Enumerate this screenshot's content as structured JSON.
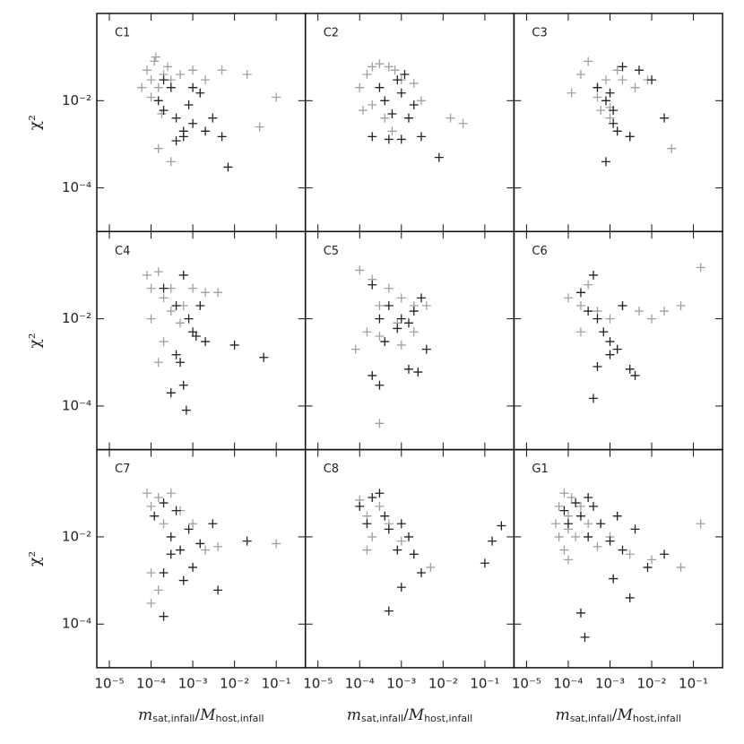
{
  "chart_data": [
    {
      "type": "scatter",
      "title": "C1",
      "ylabel": "χ²",
      "xlim": [
        5e-06,
        0.5
      ],
      "ylim": [
        1e-05,
        1
      ],
      "log_x": true,
      "log_y": true,
      "xticks": [
        1e-05,
        0.0001,
        0.001,
        0.01,
        0.1
      ],
      "yticks": [
        {
          "value": 0.0001,
          "label": "10⁻⁴"
        },
        {
          "value": 0.01,
          "label": "10⁻²"
        }
      ],
      "series": [
        {
          "color": "#a0a0a0",
          "x": [
            8e-05,
            0.0001,
            0.00012,
            0.00015,
            0.0002,
            0.0001,
            0.00013,
            0.00025,
            6e-05,
            0.00018,
            0.0003,
            0.0005,
            0.001,
            0.002,
            0.005,
            0.02,
            0.1,
            0.04,
            0.00015,
            0.0003
          ],
          "values": [
            0.05,
            0.03,
            0.08,
            0.02,
            0.04,
            0.012,
            0.1,
            0.06,
            0.02,
            0.005,
            0.03,
            0.04,
            0.05,
            0.03,
            0.05,
            0.04,
            0.012,
            0.0025,
            0.0008,
            0.0004
          ]
        },
        {
          "color": "#222222",
          "x": [
            0.00015,
            0.0002,
            0.0003,
            0.0004,
            0.0006,
            0.0008,
            0.001,
            0.0015,
            0.002,
            0.003,
            0.005,
            0.0004,
            0.001,
            0.007,
            0.0002,
            0.0006
          ],
          "values": [
            0.01,
            0.006,
            0.02,
            0.004,
            0.002,
            0.008,
            0.003,
            0.015,
            0.002,
            0.004,
            0.0015,
            0.0012,
            0.02,
            0.0003,
            0.03,
            0.0015
          ]
        }
      ]
    },
    {
      "type": "scatter",
      "title": "C2",
      "xlim": [
        5e-06,
        0.5
      ],
      "ylim": [
        1e-05,
        1
      ],
      "log_x": true,
      "log_y": true,
      "xticks": [
        1e-05,
        0.0001,
        0.001,
        0.01,
        0.1
      ],
      "yticks": [
        0.0001,
        0.01
      ],
      "series": [
        {
          "color": "#a0a0a0",
          "x": [
            0.0001,
            0.00015,
            0.0002,
            0.0003,
            0.0005,
            0.0007,
            0.0002,
            0.0004,
            0.001,
            0.002,
            0.003,
            0.00012,
            0.0006,
            0.03,
            0.015
          ],
          "values": [
            0.02,
            0.04,
            0.06,
            0.07,
            0.06,
            0.05,
            0.008,
            0.004,
            0.03,
            0.025,
            0.01,
            0.006,
            0.002,
            0.003,
            0.004
          ]
        },
        {
          "color": "#222222",
          "x": [
            0.0003,
            0.0004,
            0.0006,
            0.0008,
            0.001,
            0.0015,
            0.002,
            0.003,
            0.0005,
            0.001,
            0.0002,
            0.008,
            0.0012
          ],
          "values": [
            0.02,
            0.01,
            0.005,
            0.03,
            0.015,
            0.004,
            0.008,
            0.0015,
            0.0013,
            0.0013,
            0.0015,
            0.0005,
            0.04
          ]
        }
      ]
    },
    {
      "type": "scatter",
      "title": "C3",
      "xlim": [
        5e-06,
        0.5
      ],
      "ylim": [
        1e-05,
        1
      ],
      "log_x": true,
      "log_y": true,
      "xticks": [
        1e-05,
        0.0001,
        0.001,
        0.01,
        0.1
      ],
      "yticks": [
        0.0001,
        0.01
      ],
      "series": [
        {
          "color": "#a0a0a0",
          "x": [
            0.0002,
            0.0003,
            0.0005,
            0.0008,
            0.001,
            0.002,
            0.0005,
            0.001,
            0.0015,
            0.004,
            0.008,
            0.03,
            0.00012,
            0.0006
          ],
          "values": [
            0.04,
            0.08,
            0.02,
            0.03,
            0.007,
            0.03,
            0.012,
            0.004,
            0.05,
            0.02,
            0.03,
            0.0008,
            0.015,
            0.006
          ]
        },
        {
          "color": "#222222",
          "x": [
            0.0005,
            0.0008,
            0.001,
            0.0012,
            0.002,
            0.003,
            0.005,
            0.01,
            0.0015,
            0.0008,
            0.0012,
            0.02,
            0.003
          ],
          "values": [
            0.02,
            0.01,
            0.015,
            0.006,
            0.06,
            0.0015,
            0.05,
            0.03,
            0.002,
            0.0004,
            0.003,
            0.004,
            0.0015
          ]
        }
      ]
    },
    {
      "type": "scatter",
      "title": "C4",
      "ylabel": "χ²",
      "xlim": [
        5e-06,
        0.5
      ],
      "ylim": [
        1e-05,
        1
      ],
      "log_x": true,
      "log_y": true,
      "xticks": [
        1e-05,
        0.0001,
        0.001,
        0.01,
        0.1
      ],
      "yticks": [
        {
          "value": 0.0001,
          "label": "10⁻⁴"
        },
        {
          "value": 0.01,
          "label": "10⁻²"
        }
      ],
      "series": [
        {
          "color": "#a0a0a0",
          "x": [
            8e-05,
            0.0001,
            0.00015,
            0.0002,
            0.0003,
            0.0005,
            0.001,
            0.002,
            0.004,
            0.0001,
            0.0003,
            0.0006,
            0.0002,
            0.00015
          ],
          "values": [
            0.1,
            0.05,
            0.12,
            0.03,
            0.015,
            0.008,
            0.05,
            0.04,
            0.04,
            0.01,
            0.05,
            0.02,
            0.003,
            0.001
          ]
        },
        {
          "color": "#222222",
          "x": [
            0.0002,
            0.0004,
            0.0006,
            0.0008,
            0.001,
            0.0015,
            0.002,
            0.0012,
            0.0005,
            0.0006,
            0.0004,
            0.0003,
            0.01,
            0.05,
            0.0007
          ],
          "values": [
            0.05,
            0.02,
            0.1,
            0.01,
            0.005,
            0.02,
            0.003,
            0.004,
            0.001,
            0.0003,
            0.0015,
            0.0002,
            0.0025,
            0.0013,
            8e-05
          ]
        }
      ]
    },
    {
      "type": "scatter",
      "title": "C5",
      "xlim": [
        5e-06,
        0.5
      ],
      "ylim": [
        1e-05,
        1
      ],
      "log_x": true,
      "log_y": true,
      "xticks": [
        1e-05,
        0.0001,
        0.001,
        0.01,
        0.1
      ],
      "yticks": [
        0.0001,
        0.01
      ],
      "series": [
        {
          "color": "#a0a0a0",
          "x": [
            0.0001,
            0.0002,
            0.0003,
            0.0005,
            0.001,
            0.002,
            0.004,
            0.0008,
            0.00015,
            0.0003,
            0.001,
            0.002,
            8e-05,
            0.0003
          ],
          "values": [
            0.13,
            0.08,
            0.02,
            0.05,
            0.03,
            0.02,
            0.02,
            0.008,
            0.005,
            0.004,
            0.0025,
            0.005,
            0.002,
            4e-05
          ]
        },
        {
          "color": "#222222",
          "x": [
            0.0002,
            0.0003,
            0.0005,
            0.0008,
            0.001,
            0.0015,
            0.002,
            0.003,
            0.0004,
            0.0003,
            0.0015,
            0.0025,
            0.0002,
            0.004
          ],
          "values": [
            0.06,
            0.01,
            0.02,
            0.006,
            0.01,
            0.008,
            0.015,
            0.03,
            0.003,
            0.0003,
            0.0007,
            0.0006,
            0.0005,
            0.002
          ]
        }
      ]
    },
    {
      "type": "scatter",
      "title": "C6",
      "xlim": [
        5e-06,
        0.5
      ],
      "ylim": [
        1e-05,
        1
      ],
      "log_x": true,
      "log_y": true,
      "xticks": [
        1e-05,
        0.0001,
        0.001,
        0.01,
        0.1
      ],
      "yticks": [
        0.0001,
        0.01
      ],
      "series": [
        {
          "color": "#a0a0a0",
          "x": [
            0.0001,
            0.0002,
            0.0003,
            0.0005,
            0.001,
            0.002,
            0.005,
            0.02,
            0.05,
            0.15,
            0.01,
            0.0002
          ],
          "values": [
            0.03,
            0.02,
            0.06,
            0.015,
            0.01,
            0.02,
            0.015,
            0.015,
            0.02,
            0.15,
            0.01,
            0.005
          ]
        },
        {
          "color": "#222222",
          "x": [
            0.0002,
            0.0003,
            0.0004,
            0.0005,
            0.0007,
            0.001,
            0.0015,
            0.002,
            0.003,
            0.004,
            0.0005,
            0.001,
            0.0004
          ],
          "values": [
            0.04,
            0.015,
            0.1,
            0.01,
            0.005,
            0.003,
            0.002,
            0.02,
            0.0007,
            0.0005,
            0.0008,
            0.0015,
            0.00015
          ]
        }
      ]
    },
    {
      "type": "scatter",
      "title": "C7",
      "ylabel": "χ²",
      "xlabel": [
        "m",
        "sat,infall",
        "/",
        "M",
        "host,infall"
      ],
      "xlim": [
        5e-06,
        0.5
      ],
      "ylim": [
        1e-05,
        1
      ],
      "log_x": true,
      "log_y": true,
      "xticks": [
        {
          "value": 1e-05,
          "label": "10⁻⁵"
        },
        {
          "value": 0.0001,
          "label": "10⁻⁴"
        },
        {
          "value": 0.001,
          "label": "10⁻³"
        },
        {
          "value": 0.01,
          "label": "10⁻²"
        },
        {
          "value": 0.1,
          "label": "10⁻¹"
        }
      ],
      "yticks": [
        {
          "value": 0.0001,
          "label": "10⁻⁴"
        },
        {
          "value": 0.01,
          "label": "10⁻²"
        }
      ],
      "series": [
        {
          "color": "#a0a0a0",
          "x": [
            8e-05,
            0.0001,
            0.00015,
            0.0002,
            0.0003,
            0.0005,
            0.001,
            0.002,
            0.004,
            0.1,
            0.0001,
            0.00015,
            0.0001
          ],
          "values": [
            0.1,
            0.05,
            0.08,
            0.02,
            0.1,
            0.04,
            0.02,
            0.005,
            0.006,
            0.007,
            0.0015,
            0.0006,
            0.0003
          ]
        },
        {
          "color": "#222222",
          "x": [
            0.00012,
            0.0002,
            0.0003,
            0.0004,
            0.0005,
            0.0008,
            0.001,
            0.0015,
            0.003,
            0.0002,
            0.0003,
            0.0002,
            0.02,
            0.004,
            0.0006
          ],
          "values": [
            0.03,
            0.06,
            0.01,
            0.04,
            0.005,
            0.015,
            0.002,
            0.007,
            0.02,
            0.0015,
            0.004,
            0.00015,
            0.008,
            0.0006,
            0.001
          ]
        }
      ]
    },
    {
      "type": "scatter",
      "title": "C8",
      "xlabel": [
        "m",
        "sat,infall",
        "/",
        "M",
        "host,infall"
      ],
      "xlim": [
        5e-06,
        0.5
      ],
      "ylim": [
        1e-05,
        1
      ],
      "log_x": true,
      "log_y": true,
      "xticks": [
        {
          "value": 1e-05,
          "label": "10⁻⁵"
        },
        {
          "value": 0.0001,
          "label": "10⁻⁴"
        },
        {
          "value": 0.001,
          "label": "10⁻³"
        },
        {
          "value": 0.01,
          "label": "10⁻²"
        },
        {
          "value": 0.1,
          "label": "10⁻¹"
        }
      ],
      "yticks": [
        0.0001,
        0.01
      ],
      "series": [
        {
          "color": "#a0a0a0",
          "x": [
            0.0001,
            0.00015,
            0.0002,
            0.0003,
            0.0005,
            0.001,
            0.002,
            0.005,
            0.00015
          ],
          "values": [
            0.07,
            0.03,
            0.01,
            0.05,
            0.02,
            0.008,
            0.004,
            0.002,
            0.005
          ]
        },
        {
          "color": "#222222",
          "x": [
            0.0001,
            0.00015,
            0.0002,
            0.0003,
            0.0004,
            0.0005,
            0.0008,
            0.001,
            0.0015,
            0.002,
            0.003,
            0.0005,
            0.1,
            0.15,
            0.25,
            0.001
          ],
          "values": [
            0.05,
            0.02,
            0.08,
            0.1,
            0.03,
            0.015,
            0.005,
            0.02,
            0.01,
            0.004,
            0.0015,
            0.0002,
            0.0025,
            0.008,
            0.018,
            0.0007
          ]
        }
      ]
    },
    {
      "type": "scatter",
      "title": "G1",
      "xlabel": [
        "m",
        "sat,infall",
        "/",
        "M",
        "host,infall"
      ],
      "xlim": [
        5e-06,
        0.5
      ],
      "ylim": [
        1e-05,
        1
      ],
      "log_x": true,
      "log_y": true,
      "xticks": [
        {
          "value": 1e-05,
          "label": "10⁻⁵"
        },
        {
          "value": 0.0001,
          "label": "10⁻⁴"
        },
        {
          "value": 0.001,
          "label": "10⁻³"
        },
        {
          "value": 0.01,
          "label": "10⁻²"
        },
        {
          "value": 0.1,
          "label": "10⁻¹"
        }
      ],
      "yticks": [
        0.0001,
        0.01
      ],
      "series": [
        {
          "color": "#a0a0a0",
          "x": [
            5e-05,
            6e-05,
            8e-05,
            0.0001,
            0.00012,
            0.00015,
            8e-05,
            0.0001,
            0.0002,
            0.0003,
            0.0005,
            0.001,
            0.003,
            0.01,
            0.05,
            0.15,
            0.0001,
            6e-05
          ],
          "values": [
            0.02,
            0.05,
            0.1,
            0.03,
            0.08,
            0.01,
            0.005,
            0.015,
            0.05,
            0.02,
            0.006,
            0.01,
            0.004,
            0.003,
            0.002,
            0.02,
            0.003,
            0.01
          ]
        },
        {
          "color": "#222222",
          "x": [
            8e-05,
            0.0001,
            0.00015,
            0.0002,
            0.0003,
            0.0004,
            0.0006,
            0.001,
            0.0015,
            0.002,
            0.004,
            0.008,
            0.02,
            0.0002,
            0.003,
            0.0012,
            0.00025,
            0.0003
          ],
          "values": [
            0.04,
            0.02,
            0.06,
            0.03,
            0.01,
            0.05,
            0.02,
            0.008,
            0.03,
            0.005,
            0.015,
            0.002,
            0.004,
            0.00018,
            0.0004,
            0.0011,
            5e-05,
            0.08
          ]
        }
      ]
    }
  ]
}
